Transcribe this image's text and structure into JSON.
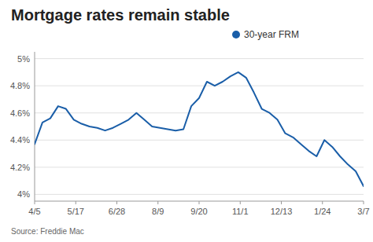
{
  "chart_data": {
    "type": "line",
    "title": "Mortgage rates remain stable",
    "annotations": [
      "Source: Freddie Mac"
    ],
    "x": [
      0,
      0.190476,
      0.380952,
      0.571429,
      0.761905,
      0.952381,
      1.142857,
      1.333333,
      1.52381,
      1.714286,
      1.904762,
      2.095238,
      2.285714,
      2.47619,
      2.666667,
      2.857143,
      3.047619,
      3.238095,
      3.428571,
      3.619048,
      3.809524,
      4,
      4.190476,
      4.380952,
      4.571429,
      4.761905,
      4.952381,
      5.142857,
      5.333333,
      5.52381,
      5.714286,
      5.904762,
      6.095238,
      6.285714,
      6.47619,
      6.666667,
      6.857143,
      7.047619,
      7.238095,
      7.428571,
      7.619048,
      7.809524,
      8
    ],
    "series": [
      {
        "name": "30-year FRM",
        "color": "#1a5ea8",
        "values": [
          4.37,
          4.53,
          4.56,
          4.65,
          4.63,
          4.55,
          4.52,
          4.5,
          4.49,
          4.47,
          4.49,
          4.52,
          4.55,
          4.6,
          4.55,
          4.5,
          4.49,
          4.48,
          4.47,
          4.48,
          4.65,
          4.71,
          4.83,
          4.8,
          4.83,
          4.87,
          4.9,
          4.86,
          4.75,
          4.63,
          4.6,
          4.55,
          4.45,
          4.42,
          4.37,
          4.32,
          4.28,
          4.4,
          4.35,
          4.28,
          4.22,
          4.17,
          4.06
        ]
      }
    ],
    "xlim": [
      0,
      8
    ],
    "xticks": [
      {
        "value": 0,
        "label": "4/5"
      },
      {
        "value": 1,
        "label": "5/17"
      },
      {
        "value": 2,
        "label": "6/28"
      },
      {
        "value": 3,
        "label": "8/9"
      },
      {
        "value": 4,
        "label": "9/20"
      },
      {
        "value": 5,
        "label": "11/1"
      },
      {
        "value": 6,
        "label": "12/13"
      },
      {
        "value": 7,
        "label": "1/24"
      },
      {
        "value": 8,
        "label": "3/7"
      }
    ],
    "ylim": [
      3.95,
      5.05
    ],
    "yticks": [
      {
        "value": 4.0,
        "label": "4%"
      },
      {
        "value": 4.2,
        "label": "4.2%"
      },
      {
        "value": 4.4,
        "label": "4.4%"
      },
      {
        "value": 4.6,
        "label": "4.6%"
      },
      {
        "value": 4.8,
        "label": "4.8%"
      },
      {
        "value": 5.0,
        "label": "5%"
      }
    ],
    "grid": true,
    "legend": "top-right"
  }
}
